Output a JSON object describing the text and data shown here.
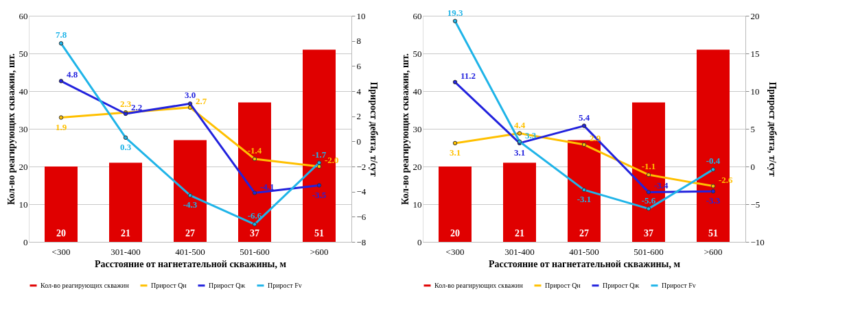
{
  "chart_data": [
    {
      "type": "bar",
      "categories": [
        "<300",
        "301-400",
        "401-500",
        "501-600",
        ">600"
      ],
      "xlabel": "Расстояние от нагнетательной скважины, м",
      "ylabel": "Кол-во реагирующих скважин, шт.",
      "y2label": "Прирост дебита, т/сут",
      "ylim": [
        0,
        60
      ],
      "yticks": [
        0,
        10,
        20,
        30,
        40,
        50,
        60
      ],
      "y2lim": [
        -8,
        10
      ],
      "y2ticks": [
        -8,
        -6,
        -4,
        -2,
        0,
        2,
        4,
        6,
        8,
        10
      ],
      "grid": "y",
      "legend": "bottom",
      "data_labels": true,
      "marker": "circle",
      "series": [
        {
          "name": "Кол-во реагирующих скважин",
          "color": "#e00000",
          "values": [
            20,
            21,
            27,
            37,
            51
          ]
        },
        {
          "name": "Прирост Qн",
          "type": "line",
          "axis": "y2",
          "color": "#ffc000",
          "values": [
            1.9,
            2.3,
            2.7,
            -1.4,
            -2.0
          ],
          "value_labels": [
            "1.9",
            "2.3",
            "2.7",
            "-1.4",
            "-2.0"
          ]
        },
        {
          "name": "Прирост Qж",
          "type": "line",
          "axis": "y2",
          "color": "#2222dd",
          "values": [
            4.8,
            2.2,
            3.0,
            -4.1,
            -3.5
          ],
          "value_labels": [
            "4.8",
            "2.2",
            "3.0",
            "-4.1",
            "-3.5"
          ]
        },
        {
          "name": "Прирост Fv",
          "type": "line",
          "axis": "y2",
          "color": "#1fb4e8",
          "values": [
            7.8,
            0.3,
            -4.3,
            -6.6,
            -1.7
          ]
        }
      ]
    },
    {
      "type": "bar",
      "categories": [
        "<300",
        "301-400",
        "401-500",
        "501-600",
        ">600"
      ],
      "xlabel": "Расстояние от нагнетательной скважины, м",
      "ylabel": "Кол-во реагирующих скважин, шт.",
      "y2label": "Прирост дебита, т/сут",
      "ylim": [
        0,
        60
      ],
      "yticks": [
        0,
        10,
        20,
        30,
        40,
        50,
        60
      ],
      "y2lim": [
        -10,
        20
      ],
      "y2ticks": [
        -10,
        -5,
        0,
        5,
        10,
        15,
        20
      ],
      "grid": "y",
      "legend": "bottom",
      "data_labels": true,
      "marker": "circle",
      "series": [
        {
          "name": "Кол-во реагирующих скважин",
          "color": "#e00000",
          "values": [
            20,
            21,
            27,
            37,
            51
          ]
        },
        {
          "name": "Прирост Qн",
          "type": "line",
          "axis": "y2",
          "color": "#ffc000",
          "values": [
            3.1,
            4.4,
            2.9,
            -1.1,
            -2.6
          ]
        },
        {
          "name": "Прирост Qж",
          "type": "line",
          "axis": "y2",
          "color": "#2222dd",
          "values": [
            11.2,
            3.1,
            5.4,
            -3.4,
            -3.3
          ]
        },
        {
          "name": "Прирост Fv",
          "type": "line",
          "axis": "y2",
          "color": "#1fb4e8",
          "values": [
            19.3,
            3.3,
            -3.1,
            -5.6,
            -0.4
          ]
        }
      ]
    }
  ]
}
